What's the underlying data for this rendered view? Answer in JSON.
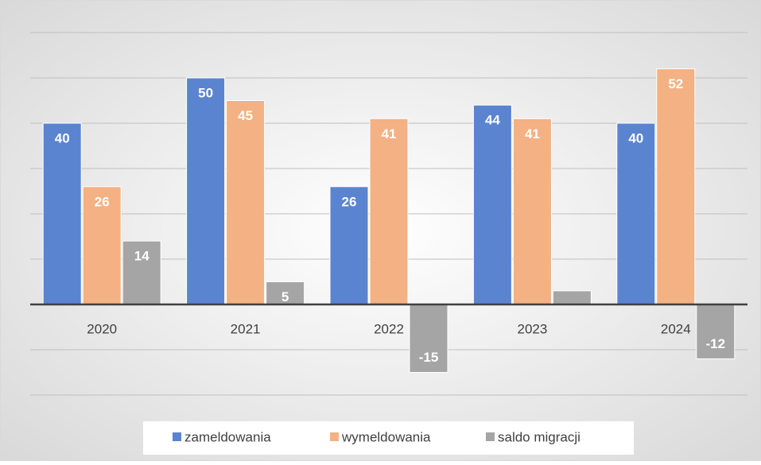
{
  "chart_data": {
    "type": "bar",
    "categories": [
      "2020",
      "2021",
      "2022",
      "2023",
      "2024"
    ],
    "series": [
      {
        "name": "zameldowania",
        "color": "#5b84d0",
        "values": [
          40,
          50,
          26,
          44,
          40
        ]
      },
      {
        "name": "wymeldowania",
        "color": "#f4b183",
        "values": [
          26,
          45,
          41,
          41,
          52
        ]
      },
      {
        "name": "saldo migracji",
        "color": "#a5a5a5",
        "values": [
          14,
          5,
          -15,
          3,
          -12
        ],
        "value_labels": [
          "14",
          "5",
          "-15",
          null,
          "-12"
        ]
      }
    ],
    "ylim": [
      -20,
      60
    ],
    "yticks": [
      -20,
      -10,
      0,
      10,
      20,
      30,
      40,
      50,
      60
    ],
    "grid": true,
    "legend": "bottom"
  }
}
